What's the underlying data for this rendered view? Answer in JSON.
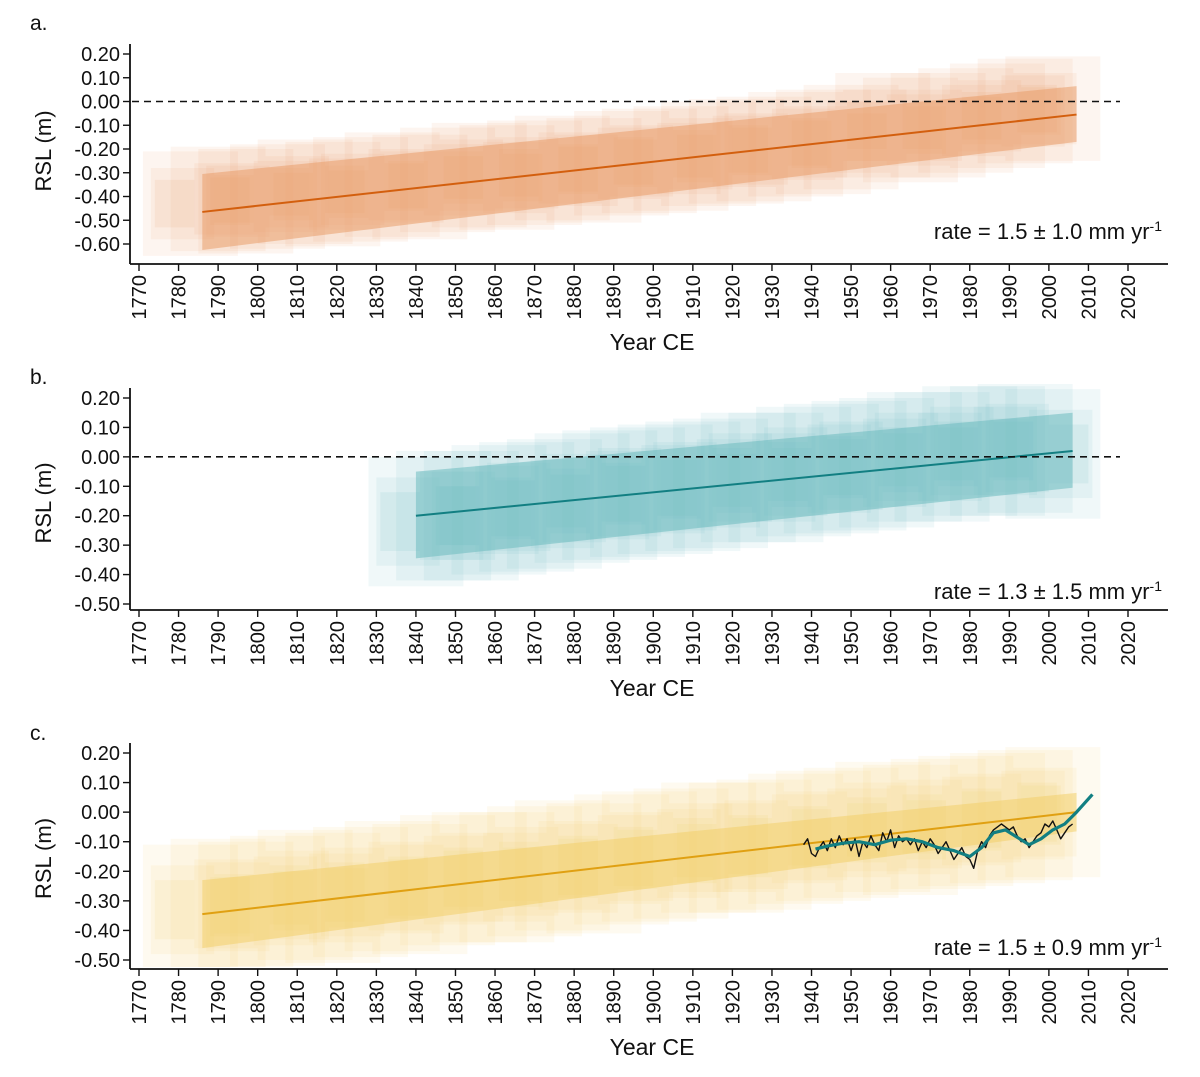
{
  "chart_data": [
    {
      "type": "line",
      "panel_label": "a.",
      "xlabel": "Year CE",
      "ylabel": "RSL (m)",
      "xlim": [
        1770,
        2020
      ],
      "ylim": [
        -0.6,
        0.2
      ],
      "x_ticks": [
        "1770",
        "1780",
        "1790",
        "1800",
        "1810",
        "1820",
        "1830",
        "1840",
        "1850",
        "1860",
        "1870",
        "1880",
        "1890",
        "1900",
        "1910",
        "1920",
        "1930",
        "1940",
        "1950",
        "1960",
        "1970",
        "1980",
        "1990",
        "2000",
        "2010",
        "2020"
      ],
      "y_ticks": [
        "0.20",
        "0.10",
        "0.00",
        "-0.10",
        "-0.20",
        "-0.30",
        "-0.40",
        "-0.50",
        "-0.60"
      ],
      "color": "#d35f0e",
      "band_color": "#ea9f6c",
      "reference_line_y": 0.0,
      "annotation": "rate = 1.5 ± 1.0 mm yr",
      "annotation_sup": "-1",
      "series": [
        {
          "kind": "trend",
          "x": [
            1786,
            2007
          ],
          "y": [
            -0.465,
            -0.055
          ],
          "upper": [
            -0.305,
            0.065
          ],
          "lower": [
            -0.625,
            -0.17
          ]
        }
      ],
      "boxes": {
        "x": [
          1783,
          1790,
          1797,
          1805,
          1812,
          1819,
          1826,
          1834,
          1841,
          1848,
          1856,
          1863,
          1870,
          1877,
          1885,
          1892,
          1899,
          1907,
          1914,
          1921,
          1928,
          1936,
          1943,
          1950,
          1958,
          1965,
          1972,
          1979,
          1987,
          1994,
          2001
        ],
        "y": [
          -0.43,
          -0.41,
          -0.42,
          -0.4,
          -0.38,
          -0.39,
          -0.37,
          -0.35,
          -0.36,
          -0.33,
          -0.31,
          -0.32,
          -0.3,
          -0.28,
          -0.29,
          -0.26,
          -0.25,
          -0.24,
          -0.22,
          -0.21,
          -0.2,
          -0.18,
          -0.17,
          -0.15,
          -0.1,
          -0.12,
          -0.1,
          -0.08,
          -0.06,
          -0.04,
          -0.03
        ]
      }
    },
    {
      "type": "line",
      "panel_label": "b.",
      "xlabel": "Year CE",
      "ylabel": "RSL (m)",
      "xlim": [
        1770,
        2020
      ],
      "ylim": [
        -0.5,
        0.2
      ],
      "x_ticks": [
        "1770",
        "1780",
        "1790",
        "1800",
        "1810",
        "1820",
        "1830",
        "1840",
        "1850",
        "1860",
        "1870",
        "1880",
        "1890",
        "1900",
        "1910",
        "1920",
        "1930",
        "1940",
        "1950",
        "1960",
        "1970",
        "1980",
        "1990",
        "2000",
        "2010",
        "2020"
      ],
      "y_ticks": [
        "0.20",
        "0.10",
        "0.00",
        "-0.10",
        "-0.20",
        "-0.30",
        "-0.40",
        "-0.50"
      ],
      "color": "#127f82",
      "band_color": "#6dbcc0",
      "reference_line_y": 0.0,
      "annotation": "rate = 1.3 ± 1.5 mm yr",
      "annotation_sup": "-1",
      "series": [
        {
          "kind": "trend",
          "x": [
            1840,
            2006
          ],
          "y": [
            -0.2,
            0.02
          ],
          "upper": [
            -0.05,
            0.15
          ],
          "lower": [
            -0.345,
            -0.105
          ]
        }
      ],
      "boxes": {
        "x": [
          1840,
          1847,
          1854,
          1861,
          1868,
          1875,
          1882,
          1889,
          1896,
          1903,
          1910,
          1917,
          1924,
          1931,
          1938,
          1945,
          1952,
          1959,
          1966,
          1973,
          1980,
          1987,
          1994,
          2001
        ],
        "y": [
          -0.22,
          -0.2,
          -0.2,
          -0.18,
          -0.17,
          -0.16,
          -0.14,
          -0.13,
          -0.12,
          -0.11,
          -0.1,
          -0.09,
          -0.07,
          -0.07,
          -0.05,
          -0.04,
          -0.03,
          -0.02,
          0.0,
          0.0,
          0.02,
          0.02,
          0.03,
          0.01
        ]
      }
    },
    {
      "type": "line",
      "panel_label": "c.",
      "xlabel": "Year CE",
      "ylabel": "RSL (m)",
      "xlim": [
        1770,
        2020
      ],
      "ylim": [
        -0.5,
        0.2
      ],
      "x_ticks": [
        "1770",
        "1780",
        "1790",
        "1800",
        "1810",
        "1820",
        "1830",
        "1840",
        "1850",
        "1860",
        "1870",
        "1880",
        "1890",
        "1900",
        "1910",
        "1920",
        "1930",
        "1940",
        "1950",
        "1960",
        "1970",
        "1980",
        "1990",
        "2000",
        "2010",
        "2020"
      ],
      "y_ticks": [
        "0.20",
        "0.10",
        "0.00",
        "-0.10",
        "-0.20",
        "-0.30",
        "-0.40",
        "-0.50"
      ],
      "color": "#e0a012",
      "band_color": "#f2cf6c",
      "reference_line_y": null,
      "annotation": "rate = 1.5 ± 0.9 mm yr",
      "annotation_sup": "-1",
      "series": [
        {
          "kind": "trend",
          "x": [
            1786,
            2007
          ],
          "y": [
            -0.345,
            0.0
          ],
          "upper": [
            -0.23,
            0.065
          ],
          "lower": [
            -0.46,
            -0.065
          ]
        },
        {
          "kind": "tide_gauge_annual",
          "color": "#111111",
          "x": [
            1938,
            1939,
            1940,
            1941,
            1942,
            1943,
            1944,
            1945,
            1946,
            1947,
            1948,
            1949,
            1950,
            1951,
            1952,
            1953,
            1954,
            1955,
            1956,
            1957,
            1958,
            1959,
            1960,
            1961,
            1962,
            1963,
            1964,
            1965,
            1966,
            1967,
            1968,
            1969,
            1970,
            1971,
            1972,
            1973,
            1974,
            1975,
            1976,
            1977,
            1978,
            1979,
            1980,
            1981,
            1982,
            1983,
            1984,
            1985,
            1986,
            1987,
            1988,
            1989,
            1990,
            1991,
            1992,
            1993,
            1994,
            1995,
            1996,
            1997,
            1998,
            1999,
            2000,
            2001,
            2002,
            2003,
            2004,
            2005,
            2006
          ],
          "y": [
            -0.11,
            -0.09,
            -0.14,
            -0.15,
            -0.12,
            -0.1,
            -0.13,
            -0.09,
            -0.12,
            -0.08,
            -0.11,
            -0.09,
            -0.13,
            -0.09,
            -0.15,
            -0.1,
            -0.12,
            -0.08,
            -0.11,
            -0.13,
            -0.07,
            -0.1,
            -0.06,
            -0.12,
            -0.08,
            -0.1,
            -0.09,
            -0.11,
            -0.09,
            -0.13,
            -0.1,
            -0.12,
            -0.09,
            -0.11,
            -0.14,
            -0.12,
            -0.1,
            -0.13,
            -0.16,
            -0.14,
            -0.12,
            -0.15,
            -0.16,
            -0.19,
            -0.13,
            -0.1,
            -0.12,
            -0.08,
            -0.06,
            -0.05,
            -0.04,
            -0.05,
            -0.06,
            -0.05,
            -0.08,
            -0.1,
            -0.09,
            -0.12,
            -0.1,
            -0.08,
            -0.07,
            -0.04,
            -0.05,
            -0.03,
            -0.06,
            -0.09,
            -0.07,
            -0.05,
            -0.04
          ]
        },
        {
          "kind": "tide_gauge_smoothed",
          "color": "#127f82",
          "x": [
            1941,
            1944,
            1948,
            1952,
            1956,
            1960,
            1964,
            1968,
            1972,
            1976,
            1980,
            1983,
            1986,
            1989,
            1992,
            1995,
            1998,
            2001,
            2004,
            2007,
            2011
          ],
          "y": [
            -0.125,
            -0.115,
            -0.105,
            -0.1,
            -0.11,
            -0.095,
            -0.09,
            -0.1,
            -0.12,
            -0.13,
            -0.15,
            -0.12,
            -0.07,
            -0.06,
            -0.085,
            -0.11,
            -0.09,
            -0.06,
            -0.04,
            0.0,
            0.06
          ]
        }
      ],
      "boxes": {
        "x": [
          1783,
          1790,
          1797,
          1805,
          1812,
          1819,
          1826,
          1834,
          1841,
          1848,
          1856,
          1863,
          1870,
          1877,
          1885,
          1892,
          1899,
          1907,
          1914,
          1921,
          1928,
          1936,
          1943,
          1950,
          1958,
          1965,
          1972,
          1979,
          1987,
          1994,
          2001
        ],
        "y": [
          -0.33,
          -0.31,
          -0.32,
          -0.3,
          -0.28,
          -0.29,
          -0.27,
          -0.25,
          -0.26,
          -0.23,
          -0.22,
          -0.22,
          -0.2,
          -0.18,
          -0.19,
          -0.16,
          -0.15,
          -0.14,
          -0.12,
          -0.12,
          -0.11,
          -0.09,
          -0.08,
          -0.07,
          -0.05,
          -0.06,
          -0.04,
          -0.03,
          -0.02,
          -0.01,
          0.0
        ]
      }
    }
  ]
}
